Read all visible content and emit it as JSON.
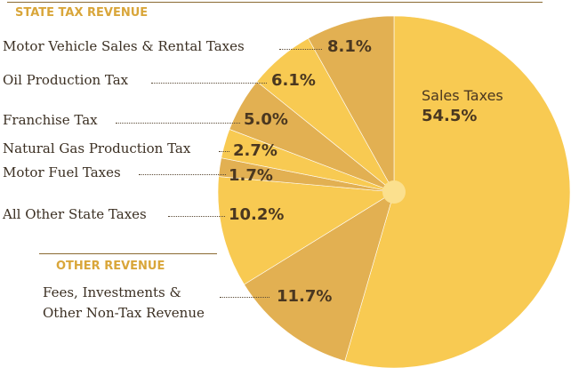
{
  "sections": {
    "state_tax": "STATE TAX REVENUE",
    "other": "OTHER REVENUE"
  },
  "colors": {
    "title": "#d9a63a",
    "rule": "#8a6a32",
    "center_dot": "#fbe08e"
  },
  "chart_data": {
    "type": "pie",
    "slices": [
      {
        "label": "Sales Taxes",
        "value": 54.5,
        "display": "54.5%",
        "color": "#f8ca52"
      },
      {
        "label": "Fees, Investments & Other Non-Tax Revenue",
        "value": 11.7,
        "display": "11.7%",
        "color": "#e2b052"
      },
      {
        "label": "All Other State Taxes",
        "value": 10.2,
        "display": "10.2%",
        "color": "#f8ca52"
      },
      {
        "label": "Motor Fuel Taxes",
        "value": 1.7,
        "display": "1.7%",
        "color": "#e2b052"
      },
      {
        "label": "Natural Gas Production Tax",
        "value": 2.7,
        "display": "2.7%",
        "color": "#f8ca52"
      },
      {
        "label": "Franchise Tax",
        "value": 5.0,
        "display": "5.0%",
        "color": "#e2b052"
      },
      {
        "label": "Oil Production Tax",
        "value": 6.1,
        "display": "6.1%",
        "color": "#f8ca52"
      },
      {
        "label": "Motor Vehicle Sales & Rental Taxes",
        "value": 8.1,
        "display": "8.1%",
        "color": "#e2b052"
      }
    ],
    "labels": {
      "sales": "Sales Taxes",
      "fees_line1": "Fees, Investments &",
      "fees_line2": "Other Non-Tax Revenue",
      "all_other": "All Other State Taxes",
      "motor_fuel": "Motor Fuel Taxes",
      "natural_gas": "Natural Gas Production Tax",
      "franchise": "Franchise Tax",
      "oil": "Oil Production Tax",
      "motor_vehicle": "Motor Vehicle Sales & Rental Taxes"
    },
    "legend": "none"
  }
}
